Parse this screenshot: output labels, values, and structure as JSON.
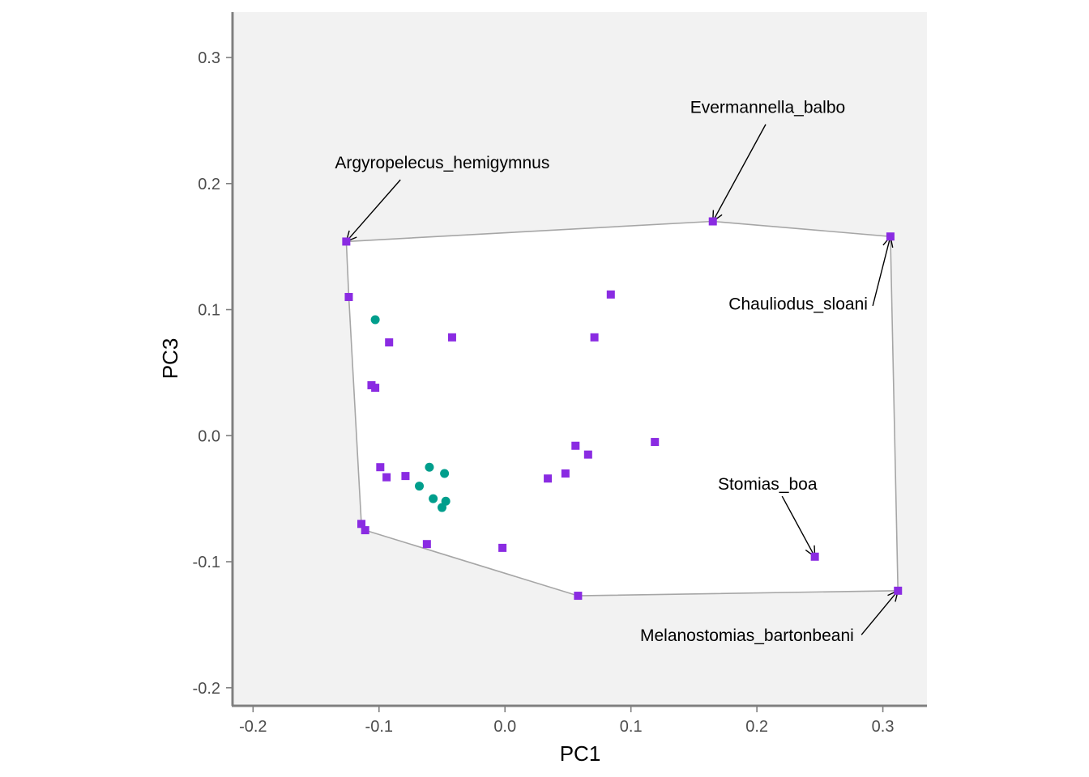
{
  "chart_data": {
    "type": "scatter",
    "xlabel": "PC1",
    "ylabel": "PC3",
    "xlim": [
      -0.215,
      0.335
    ],
    "ylim": [
      -0.213,
      0.336
    ],
    "x_ticks": [
      -0.2,
      -0.1,
      0.0,
      0.1,
      0.2,
      0.3
    ],
    "x_tick_labels": [
      "-0.2",
      "-0.1",
      "0.0",
      "0.1",
      "0.2",
      "0.3"
    ],
    "y_ticks": [
      -0.2,
      -0.1,
      0.0,
      0.1,
      0.2,
      0.3
    ],
    "y_tick_labels": [
      "-0.2",
      "-0.1",
      "0.0",
      "0.1",
      "0.2",
      "0.3"
    ],
    "grid": false,
    "legend": "none",
    "colors": {
      "panel_background": "#f2f2f2",
      "hull_fill": "#ffffff",
      "hull_stroke": "#a6a6a6",
      "axis_line": "#7f7f7f",
      "series_square": "#8a2be2",
      "series_circle": "#009e8c"
    },
    "series": [
      {
        "marker": "square",
        "color": "#8a2be2",
        "points": [
          {
            "x": -0.126,
            "y": 0.154
          },
          {
            "x": -0.124,
            "y": 0.11
          },
          {
            "x": -0.092,
            "y": 0.074
          },
          {
            "x": -0.106,
            "y": 0.04
          },
          {
            "x": -0.103,
            "y": 0.038
          },
          {
            "x": -0.099,
            "y": -0.025
          },
          {
            "x": -0.094,
            "y": -0.033
          },
          {
            "x": -0.079,
            "y": -0.032
          },
          {
            "x": -0.114,
            "y": -0.07
          },
          {
            "x": -0.111,
            "y": -0.075
          },
          {
            "x": -0.062,
            "y": -0.086
          },
          {
            "x": -0.042,
            "y": 0.078
          },
          {
            "x": -0.002,
            "y": -0.089
          },
          {
            "x": 0.034,
            "y": -0.034
          },
          {
            "x": 0.048,
            "y": -0.03
          },
          {
            "x": 0.056,
            "y": -0.008
          },
          {
            "x": 0.066,
            "y": -0.015
          },
          {
            "x": 0.058,
            "y": -0.127
          },
          {
            "x": 0.071,
            "y": 0.078
          },
          {
            "x": 0.084,
            "y": 0.112
          },
          {
            "x": 0.119,
            "y": -0.005
          },
          {
            "x": 0.165,
            "y": 0.17
          },
          {
            "x": 0.306,
            "y": 0.158
          },
          {
            "x": 0.246,
            "y": -0.096
          },
          {
            "x": 0.312,
            "y": -0.123
          }
        ]
      },
      {
        "marker": "circle",
        "color": "#009e8c",
        "points": [
          {
            "x": -0.103,
            "y": 0.092
          },
          {
            "x": -0.06,
            "y": -0.025
          },
          {
            "x": -0.048,
            "y": -0.03
          },
          {
            "x": -0.068,
            "y": -0.04
          },
          {
            "x": -0.057,
            "y": -0.05
          },
          {
            "x": -0.047,
            "y": -0.052
          },
          {
            "x": -0.05,
            "y": -0.057
          }
        ]
      }
    ],
    "hull": [
      {
        "x": -0.126,
        "y": 0.154
      },
      {
        "x": 0.165,
        "y": 0.17
      },
      {
        "x": 0.306,
        "y": 0.158
      },
      {
        "x": 0.312,
        "y": -0.123
      },
      {
        "x": 0.058,
        "y": -0.127
      },
      {
        "x": -0.111,
        "y": -0.075
      },
      {
        "x": -0.114,
        "y": -0.07
      },
      {
        "x": -0.124,
        "y": 0.11
      }
    ],
    "annotations": [
      {
        "text": "Argyropelecus_hemigymnus",
        "label_x": -0.135,
        "label_y": 0.212,
        "point_x": -0.126,
        "point_y": 0.154,
        "line_from_x": -0.083,
        "line_from_y": 0.203,
        "anchor": "start"
      },
      {
        "text": "Evermannella_balbo",
        "label_x": 0.147,
        "label_y": 0.256,
        "point_x": 0.165,
        "point_y": 0.17,
        "line_from_x": 0.207,
        "line_from_y": 0.247,
        "anchor": "start"
      },
      {
        "text": "Chauliodus_sloani",
        "label_x": 0.288,
        "label_y": 0.1,
        "point_x": 0.306,
        "point_y": 0.158,
        "line_from_x": 0.292,
        "line_from_y": 0.103,
        "anchor": "end"
      },
      {
        "text": "Stomias_boa",
        "label_x": 0.169,
        "label_y": -0.043,
        "point_x": 0.246,
        "point_y": -0.096,
        "line_from_x": 0.22,
        "line_from_y": -0.048,
        "anchor": "start"
      },
      {
        "text": "Melanostomias_bartonbeani",
        "label_x": 0.277,
        "label_y": -0.163,
        "point_x": 0.312,
        "point_y": -0.123,
        "line_from_x": 0.283,
        "line_from_y": -0.158,
        "anchor": "end"
      }
    ]
  }
}
